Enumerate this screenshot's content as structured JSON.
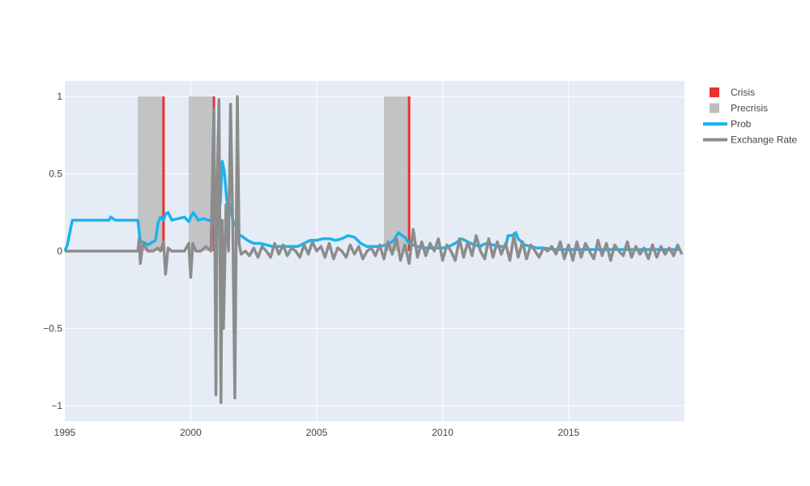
{
  "chart_data": {
    "type": "line",
    "title": "",
    "xlabel": "",
    "ylabel": "",
    "xlim": [
      1995.0,
      2019.6
    ],
    "ylim": [
      -1.1,
      1.1
    ],
    "x_ticks": [
      {
        "value": 1995,
        "label": "1995"
      },
      {
        "value": 2000,
        "label": "2000"
      },
      {
        "value": 2005,
        "label": "2005"
      },
      {
        "value": 2010,
        "label": "2010"
      },
      {
        "value": 2015,
        "label": "2015"
      }
    ],
    "y_ticks": [
      {
        "value": 1,
        "label": "1"
      },
      {
        "value": 0.5,
        "label": "0.5"
      },
      {
        "value": 0,
        "label": "0"
      },
      {
        "value": -0.5,
        "label": "−0.5"
      },
      {
        "value": -1,
        "label": "−1"
      }
    ],
    "grid": true,
    "legend_position": "top-right",
    "colors": {
      "plot_bg": "#e5ecf6",
      "grid": "#ffffff",
      "crisis": "#e8302e",
      "precrisis": "#bcbcbc",
      "prob": "#1ab3ee",
      "exchange_rate": "#8c8c8c"
    },
    "series": [
      {
        "name": "Crisis",
        "kind": "bar",
        "x": [
          1998.92,
          2000.92,
          2008.67
        ],
        "values": [
          1,
          1,
          1
        ]
      },
      {
        "name": "Precrisis",
        "kind": "band",
        "ranges": [
          [
            1997.9,
            1998.92
          ],
          [
            1999.92,
            2000.92
          ],
          [
            2007.67,
            2008.67
          ]
        ],
        "value": 1
      },
      {
        "name": "Prob",
        "kind": "line",
        "x": [
          1995.0,
          1995.1,
          1995.3,
          1995.6,
          1996.0,
          1996.5,
          1996.75,
          1996.83,
          1997.0,
          1997.5,
          1997.58,
          1997.9,
          1998.0,
          1998.1,
          1998.3,
          1998.5,
          1998.6,
          1998.7,
          1998.8,
          1998.92,
          1999.0,
          1999.1,
          1999.25,
          1999.5,
          1999.75,
          1999.92,
          2000.0,
          2000.1,
          2000.3,
          2000.5,
          2000.7,
          2000.92,
          2001.0,
          2001.08,
          2001.17,
          2001.25,
          2001.33,
          2001.42,
          2001.5,
          2001.58,
          2001.67,
          2001.75,
          2001.83,
          2001.92,
          2002.0,
          2002.25,
          2002.5,
          2002.75,
          2003.0,
          2003.25,
          2003.5,
          2003.75,
          2004.0,
          2004.25,
          2004.5,
          2004.75,
          2005.0,
          2005.25,
          2005.5,
          2005.75,
          2006.0,
          2006.25,
          2006.5,
          2006.75,
          2007.0,
          2007.25,
          2007.5,
          2007.75,
          2008.0,
          2008.1,
          2008.25,
          2008.4,
          2008.5,
          2008.67,
          2008.83,
          2009.0,
          2009.25,
          2009.5,
          2009.75,
          2010.0,
          2010.25,
          2010.5,
          2010.75,
          2011.0,
          2011.25,
          2011.5,
          2011.58,
          2011.75,
          2012.0,
          2012.25,
          2012.5,
          2012.6,
          2012.75,
          2012.9,
          2013.0,
          2013.25,
          2013.5,
          2013.75,
          2014.0,
          2014.5,
          2015.0,
          2015.5,
          2016.0,
          2016.5,
          2017.0,
          2017.5,
          2018.0,
          2018.5,
          2019.0,
          2019.4
        ],
        "values": [
          0.0,
          0.04,
          0.2,
          0.2,
          0.2,
          0.2,
          0.2,
          0.22,
          0.2,
          0.2,
          0.2,
          0.2,
          0.06,
          0.06,
          0.04,
          0.06,
          0.07,
          0.18,
          0.22,
          0.2,
          0.24,
          0.25,
          0.2,
          0.21,
          0.22,
          0.19,
          0.22,
          0.25,
          0.2,
          0.21,
          0.2,
          0.19,
          0.12,
          0.45,
          0.3,
          0.58,
          0.52,
          0.35,
          0.25,
          0.3,
          0.2,
          0.17,
          0.15,
          0.1,
          0.1,
          0.07,
          0.05,
          0.05,
          0.04,
          0.03,
          0.03,
          0.03,
          0.03,
          0.03,
          0.05,
          0.07,
          0.07,
          0.08,
          0.08,
          0.07,
          0.08,
          0.1,
          0.09,
          0.05,
          0.03,
          0.03,
          0.03,
          0.04,
          0.06,
          0.08,
          0.12,
          0.1,
          0.09,
          0.05,
          0.04,
          0.03,
          0.02,
          0.02,
          0.02,
          0.02,
          0.03,
          0.05,
          0.08,
          0.06,
          0.04,
          0.03,
          0.04,
          0.05,
          0.04,
          0.03,
          0.03,
          0.1,
          0.1,
          0.12,
          0.08,
          0.04,
          0.03,
          0.02,
          0.02,
          0.01,
          0.01,
          0.01,
          0.01,
          0.01,
          0.01,
          0.01,
          0.01,
          0.01,
          0.01,
          0.01
        ]
      },
      {
        "name": "Exchange Rate",
        "kind": "line",
        "x": [
          1995.0,
          1996.0,
          1997.0,
          1997.9,
          1997.95,
          1998.0,
          1998.1,
          1998.3,
          1998.5,
          1998.7,
          1998.8,
          1998.92,
          1999.0,
          1999.1,
          1999.25,
          1999.5,
          1999.75,
          1999.92,
          2000.0,
          2000.08,
          2000.2,
          2000.4,
          2000.6,
          2000.8,
          2000.92,
          2001.0,
          2001.05,
          2001.12,
          2001.2,
          2001.25,
          2001.3,
          2001.4,
          2001.5,
          2001.58,
          2001.67,
          2001.75,
          2001.8,
          2001.85,
          2001.92,
          2002.0,
          2002.17,
          2002.33,
          2002.5,
          2002.67,
          2002.83,
          2003.0,
          2003.17,
          2003.33,
          2003.5,
          2003.67,
          2003.83,
          2004.0,
          2004.17,
          2004.33,
          2004.5,
          2004.67,
          2004.83,
          2005.0,
          2005.17,
          2005.33,
          2005.5,
          2005.67,
          2005.83,
          2006.0,
          2006.17,
          2006.33,
          2006.5,
          2006.67,
          2006.83,
          2007.0,
          2007.17,
          2007.33,
          2007.5,
          2007.67,
          2007.83,
          2008.0,
          2008.17,
          2008.33,
          2008.5,
          2008.67,
          2008.83,
          2009.0,
          2009.17,
          2009.33,
          2009.5,
          2009.67,
          2009.83,
          2010.0,
          2010.17,
          2010.33,
          2010.5,
          2010.67,
          2010.83,
          2011.0,
          2011.17,
          2011.33,
          2011.5,
          2011.67,
          2011.83,
          2012.0,
          2012.17,
          2012.33,
          2012.5,
          2012.67,
          2012.83,
          2013.0,
          2013.17,
          2013.33,
          2013.5,
          2013.67,
          2013.83,
          2014.0,
          2014.17,
          2014.33,
          2014.5,
          2014.67,
          2014.83,
          2015.0,
          2015.17,
          2015.33,
          2015.5,
          2015.67,
          2015.83,
          2016.0,
          2016.17,
          2016.33,
          2016.5,
          2016.67,
          2016.83,
          2017.0,
          2017.17,
          2017.33,
          2017.5,
          2017.67,
          2017.83,
          2018.0,
          2018.17,
          2018.33,
          2018.5,
          2018.67,
          2018.83,
          2019.0,
          2019.17,
          2019.33,
          2019.5
        ],
        "values": [
          0.0,
          0.0,
          0.0,
          0.0,
          0.08,
          -0.08,
          0.05,
          0.0,
          0.0,
          0.02,
          0.0,
          0.06,
          -0.15,
          0.02,
          0.0,
          0.0,
          0.0,
          0.05,
          -0.17,
          0.05,
          0.0,
          0.0,
          0.03,
          0.0,
          0.92,
          -0.93,
          0.45,
          0.98,
          -0.98,
          0.2,
          -0.5,
          0.3,
          0.0,
          0.95,
          0.15,
          -0.95,
          0.0,
          1.0,
          0.05,
          -0.02,
          0.0,
          -0.03,
          0.02,
          -0.04,
          0.03,
          0.0,
          -0.04,
          0.05,
          -0.02,
          0.04,
          -0.03,
          0.02,
          0.0,
          -0.04,
          0.04,
          -0.02,
          0.06,
          0.0,
          0.03,
          -0.04,
          0.05,
          -0.05,
          0.02,
          0.0,
          -0.04,
          0.04,
          -0.02,
          0.03,
          -0.05,
          0.0,
          0.02,
          -0.03,
          0.04,
          -0.05,
          0.06,
          -0.02,
          0.08,
          -0.06,
          0.04,
          -0.08,
          0.14,
          -0.04,
          0.06,
          -0.03,
          0.05,
          0.0,
          0.08,
          -0.06,
          0.04,
          0.0,
          -0.06,
          0.08,
          -0.04,
          0.06,
          -0.03,
          0.1,
          0.0,
          -0.05,
          0.08,
          -0.04,
          0.06,
          -0.02,
          0.05,
          -0.06,
          0.1,
          -0.04,
          0.06,
          -0.05,
          0.04,
          0.0,
          -0.04,
          0.02,
          0.0,
          0.03,
          -0.02,
          0.06,
          -0.05,
          0.04,
          -0.06,
          0.06,
          -0.04,
          0.05,
          0.0,
          -0.05,
          0.07,
          -0.03,
          0.05,
          -0.06,
          0.04,
          0.0,
          -0.03,
          0.06,
          -0.04,
          0.03,
          -0.02,
          0.02,
          -0.05,
          0.04,
          -0.04,
          0.03,
          -0.02,
          0.02,
          -0.03,
          0.04,
          -0.02
        ]
      }
    ],
    "legend": [
      {
        "label": "Crisis",
        "kind": "box",
        "color": "#e8302e"
      },
      {
        "label": "Precrisis",
        "kind": "box",
        "color": "#bcbcbc"
      },
      {
        "label": "Prob",
        "kind": "line",
        "color": "#1ab3ee"
      },
      {
        "label": "Exchange Rate",
        "kind": "line",
        "color": "#8c8c8c"
      }
    ]
  }
}
